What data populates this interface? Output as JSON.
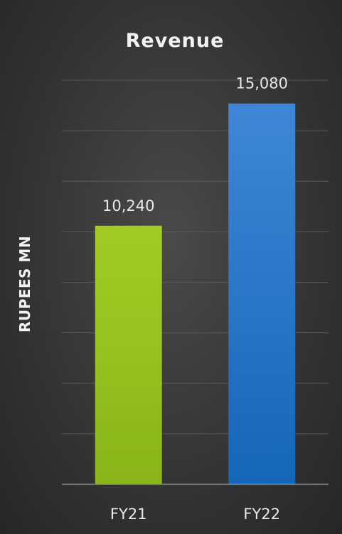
{
  "chart_data": {
    "type": "bar",
    "title": "Revenue",
    "xlabel": "",
    "ylabel": "RUPEES MN",
    "categories": [
      "FY21",
      "FY22"
    ],
    "values": [
      10240,
      15080
    ],
    "value_labels": [
      "10,240",
      "15,080"
    ],
    "bar_colors": [
      "#96c11f",
      "#1f6fc4"
    ],
    "ylim": [
      0,
      16000
    ],
    "grid": true,
    "legend": "none"
  }
}
